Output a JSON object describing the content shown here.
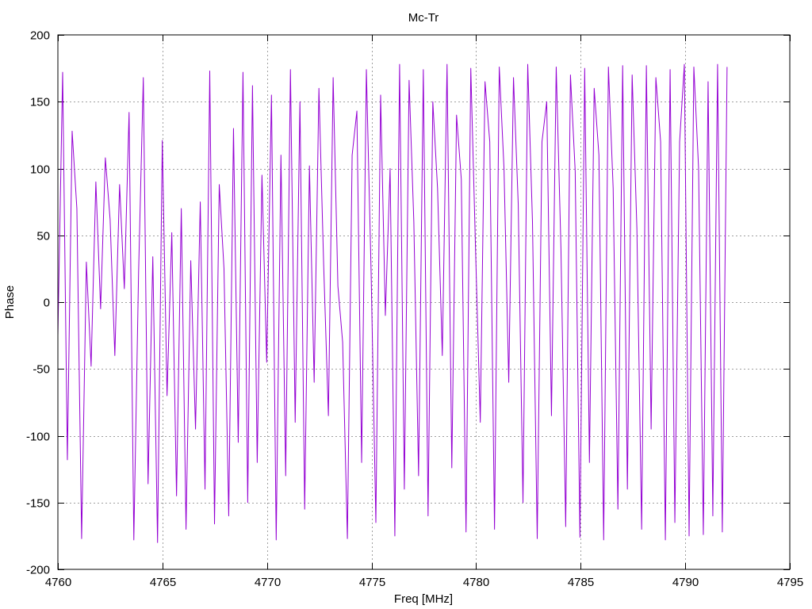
{
  "chart_data": {
    "type": "line",
    "title": "Mc-Tr",
    "xlabel": "Freq [MHz]",
    "ylabel": "Phase",
    "xlim": [
      4760,
      4795
    ],
    "ylim": [
      -200,
      200
    ],
    "xticks": [
      4760,
      4765,
      4770,
      4775,
      4780,
      4785,
      4790,
      4795
    ],
    "yticks": [
      -200,
      -150,
      -100,
      -50,
      0,
      50,
      100,
      150,
      200
    ],
    "xtick_labels": [
      "4760",
      "4765",
      "4770",
      "4775",
      "4780",
      "4785",
      "4790",
      "4795"
    ],
    "ytick_labels": [
      "-200",
      "-150",
      "-100",
      "-50",
      "0",
      "50",
      "100",
      "150",
      "200"
    ],
    "grid": true,
    "legend": "none",
    "series": [
      {
        "color": "#9400d3",
        "x_range": [
          4760,
          4792
        ],
        "sample_step": 0.02,
        "values": [
          -25,
          172,
          -118,
          128,
          70,
          -177,
          30,
          -48,
          90,
          -5,
          108,
          62,
          -40,
          88,
          10,
          142,
          -178,
          22,
          168,
          -136,
          34,
          -180,
          121,
          -70,
          52,
          -145,
          70,
          -170,
          31,
          -95,
          75,
          -140,
          173,
          -166,
          88,
          25,
          -160,
          130,
          -105,
          172,
          -150,
          162,
          -120,
          95,
          -45,
          155,
          -178,
          110,
          -130,
          174,
          -90,
          150,
          -155,
          102,
          -60,
          160,
          28,
          -85,
          168,
          12,
          -30,
          -177,
          110,
          143,
          -120,
          174,
          22,
          -165,
          155,
          -10,
          100,
          -175,
          178,
          -140,
          166,
          60,
          -130,
          174,
          -160,
          150,
          85,
          -40,
          178,
          -124,
          140,
          92,
          -172,
          175,
          40,
          -90,
          165,
          120,
          -170,
          176,
          100,
          -60,
          168,
          73,
          -150,
          178,
          60,
          -177,
          120,
          150,
          -85,
          176,
          40,
          -168,
          170,
          98,
          -176,
          175,
          -120,
          160,
          110,
          -178,
          176,
          85,
          -155,
          177,
          -140,
          170,
          55,
          -170,
          177,
          -95,
          168,
          120,
          -178,
          174,
          -165,
          120,
          178,
          -175,
          176,
          100,
          -174,
          165,
          -160,
          178,
          -172,
          176
        ]
      }
    ]
  }
}
